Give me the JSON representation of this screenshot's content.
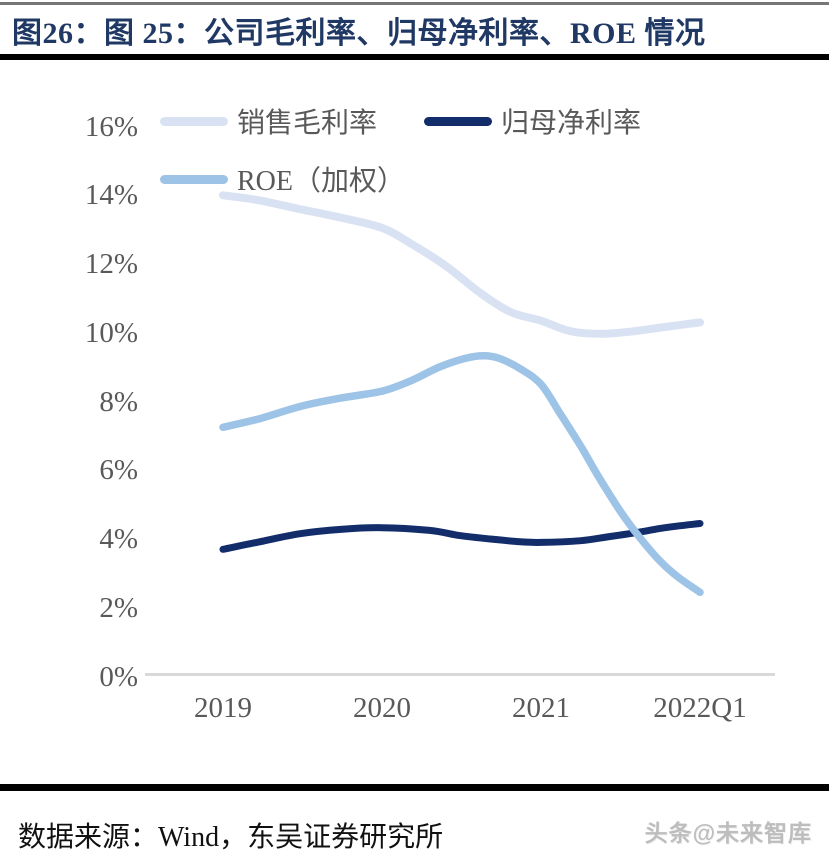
{
  "header": {
    "title": "图26：图 25：公司毛利率、归母净利率、ROE 情况"
  },
  "chart_data": {
    "type": "line",
    "title": "公司毛利率、归母净利率、ROE 情况",
    "categories": [
      "2019",
      "2020",
      "2021",
      "2022Q1"
    ],
    "xlabel": "",
    "ylabel": "",
    "ylim": [
      0,
      16
    ],
    "ytick_step": 2,
    "ytick_suffix": "%",
    "grid": false,
    "legend_position": "top-left",
    "line_style": "smooth",
    "series": [
      {
        "name": "销售毛利率",
        "color": "#d9e2f3",
        "stroke_width": 8,
        "values": [
          14.0,
          13.1,
          10.4,
          10.3
        ],
        "curve": [
          [
            0,
            14.0
          ],
          [
            0.23,
            13.85
          ],
          [
            0.48,
            13.6
          ],
          [
            0.74,
            13.35
          ],
          [
            1,
            13.05
          ],
          [
            1.18,
            12.6
          ],
          [
            1.4,
            11.95
          ],
          [
            1.62,
            11.15
          ],
          [
            1.81,
            10.6
          ],
          [
            2,
            10.35
          ],
          [
            2.18,
            10.05
          ],
          [
            2.37,
            9.97
          ],
          [
            2.56,
            10.03
          ],
          [
            2.75,
            10.15
          ],
          [
            3,
            10.3
          ]
        ]
      },
      {
        "name": "归母净利率",
        "color": "#132d6b",
        "stroke_width": 7,
        "values": [
          3.7,
          4.3,
          3.9,
          4.4
        ],
        "curve": [
          [
            0,
            3.7
          ],
          [
            0.23,
            3.92
          ],
          [
            0.48,
            4.15
          ],
          [
            0.74,
            4.28
          ],
          [
            1,
            4.33
          ],
          [
            1.3,
            4.25
          ],
          [
            1.49,
            4.1
          ],
          [
            1.68,
            4.0
          ],
          [
            1.87,
            3.92
          ],
          [
            2,
            3.9
          ],
          [
            2.25,
            3.95
          ],
          [
            2.43,
            4.07
          ],
          [
            2.62,
            4.2
          ],
          [
            2.78,
            4.33
          ],
          [
            3,
            4.45
          ]
        ]
      },
      {
        "name": "ROE（加权）",
        "color": "#9dc3e6",
        "stroke_width": 7.5,
        "values": [
          7.2,
          8.3,
          8.5,
          2.5
        ],
        "curve": [
          [
            0,
            7.25
          ],
          [
            0.23,
            7.5
          ],
          [
            0.48,
            7.85
          ],
          [
            0.74,
            8.1
          ],
          [
            1,
            8.3
          ],
          [
            1.18,
            8.6
          ],
          [
            1.36,
            9.0
          ],
          [
            1.52,
            9.25
          ],
          [
            1.64,
            9.33
          ],
          [
            1.74,
            9.25
          ],
          [
            1.87,
            8.95
          ],
          [
            2,
            8.5
          ],
          [
            2.12,
            7.65
          ],
          [
            2.25,
            6.7
          ],
          [
            2.37,
            5.75
          ],
          [
            2.5,
            4.8
          ],
          [
            2.62,
            4.05
          ],
          [
            2.75,
            3.35
          ],
          [
            2.86,
            2.9
          ],
          [
            3,
            2.45
          ]
        ]
      }
    ]
  },
  "footer": {
    "source": "数据来源：Wind，东吴证券研究所",
    "watermark": "头条@未来智库"
  }
}
